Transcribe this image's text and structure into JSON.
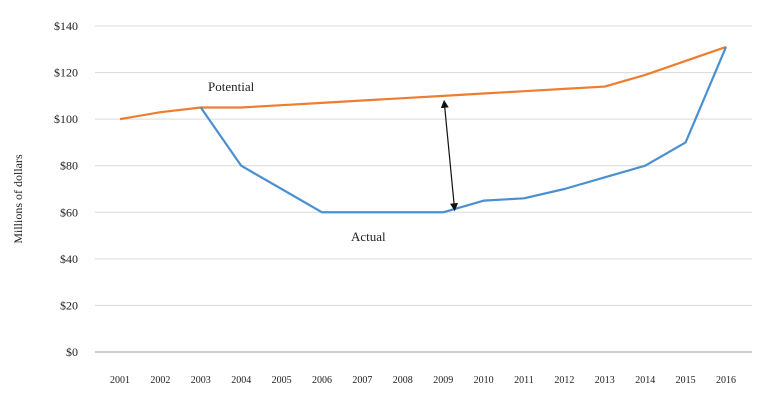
{
  "chart_data": {
    "type": "line",
    "title": "",
    "xlabel": "",
    "ylabel": "Millions of dollars",
    "ylim": [
      0,
      140
    ],
    "yticks": [
      "$0",
      "$20",
      "$40",
      "$60",
      "$80",
      "$100",
      "$120",
      "$140"
    ],
    "categories": [
      "2001",
      "2002",
      "2003",
      "2004",
      "2005",
      "2006",
      "2007",
      "2008",
      "2009",
      "2010",
      "2011",
      "2012",
      "2013",
      "2014",
      "2015",
      "2016"
    ],
    "grid": true,
    "legend": "none",
    "series": [
      {
        "name": "Potential",
        "color": "#ED7D31",
        "values": [
          100,
          103,
          105,
          105,
          106,
          107,
          108,
          109,
          110,
          111,
          112,
          113,
          114,
          119,
          125,
          131
        ]
      },
      {
        "name": "Actual",
        "color": "#4A90D0",
        "values": [
          null,
          null,
          105,
          80,
          70,
          60,
          60,
          60,
          60,
          65,
          66,
          70,
          75,
          80,
          90,
          131
        ]
      }
    ],
    "annotation": {
      "type": "double-arrow",
      "x_category_position": 8.5,
      "from": 60,
      "to": 110
    }
  }
}
